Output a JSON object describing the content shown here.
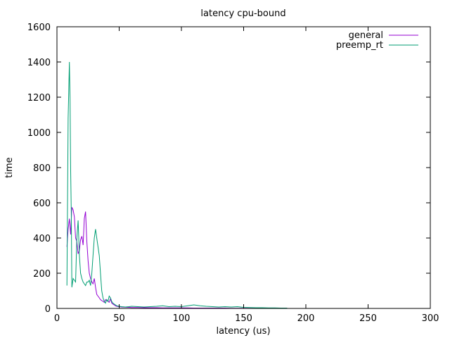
{
  "chart_data": {
    "type": "line",
    "title": "latency cpu-bound",
    "xlabel": "latency (us)",
    "ylabel": "time",
    "xlim": [
      0,
      300
    ],
    "ylim": [
      0,
      1600
    ],
    "xticks": [
      0,
      50,
      100,
      150,
      200,
      250,
      300
    ],
    "yticks": [
      0,
      200,
      400,
      600,
      800,
      1000,
      1200,
      1400,
      1600
    ],
    "grid": false,
    "legend_position": "top-right",
    "series": [
      {
        "name": "general",
        "color": "#9400d3",
        "x": [
          8,
          9,
          10,
          11,
          12,
          13,
          14,
          15,
          16,
          17,
          18,
          19,
          20,
          21,
          22,
          23,
          24,
          25,
          26,
          27,
          28,
          29,
          30,
          31,
          32,
          33,
          34,
          35,
          36,
          37,
          38,
          39,
          40,
          41,
          42,
          43,
          44,
          45,
          46,
          47,
          48,
          50,
          52,
          55,
          58,
          60,
          65,
          70,
          75,
          80,
          85,
          90,
          95,
          100,
          105,
          110,
          115,
          120,
          125,
          130,
          135,
          140,
          145,
          150,
          155,
          160,
          165,
          170,
          175,
          180,
          185
        ],
        "y": [
          350,
          450,
          510,
          420,
          575,
          560,
          520,
          400,
          380,
          310,
          330,
          390,
          410,
          360,
          510,
          550,
          380,
          270,
          200,
          170,
          150,
          140,
          170,
          120,
          80,
          70,
          60,
          50,
          45,
          40,
          35,
          50,
          45,
          40,
          35,
          55,
          30,
          25,
          20,
          15,
          12,
          10,
          8,
          7,
          6,
          5,
          5,
          4,
          4,
          4,
          3,
          3,
          3,
          3,
          3,
          2,
          2,
          2,
          2,
          2,
          2,
          1,
          1,
          1,
          1,
          1,
          1,
          1,
          1,
          1,
          1
        ]
      },
      {
        "name": "preemp_rt",
        "color": "#009e73",
        "x": [
          8,
          9,
          10,
          10.5,
          11,
          11.5,
          12,
          13,
          14,
          15,
          16,
          17,
          18,
          19,
          20,
          21,
          22,
          23,
          24,
          25,
          26,
          27,
          28,
          29,
          30,
          31,
          32,
          33,
          34,
          35,
          36,
          37,
          38,
          39,
          40,
          41,
          42,
          43,
          44,
          45,
          46,
          47,
          48,
          50,
          52,
          55,
          58,
          60,
          65,
          70,
          75,
          80,
          85,
          90,
          95,
          100,
          105,
          110,
          115,
          120,
          125,
          130,
          135,
          140,
          145,
          150,
          155,
          160,
          165,
          170,
          175,
          180,
          185
        ],
        "y": [
          130,
          1080,
          1400,
          1200,
          780,
          540,
          120,
          170,
          160,
          150,
          400,
          500,
          300,
          200,
          170,
          150,
          140,
          130,
          150,
          150,
          160,
          130,
          200,
          300,
          400,
          450,
          400,
          350,
          300,
          200,
          100,
          60,
          40,
          30,
          50,
          40,
          70,
          60,
          40,
          30,
          25,
          20,
          15,
          12,
          10,
          8,
          10,
          12,
          10,
          8,
          10,
          12,
          15,
          10,
          12,
          10,
          15,
          20,
          15,
          12,
          10,
          8,
          10,
          8,
          10,
          6,
          5,
          4,
          4,
          3,
          3,
          2,
          2
        ]
      }
    ]
  }
}
